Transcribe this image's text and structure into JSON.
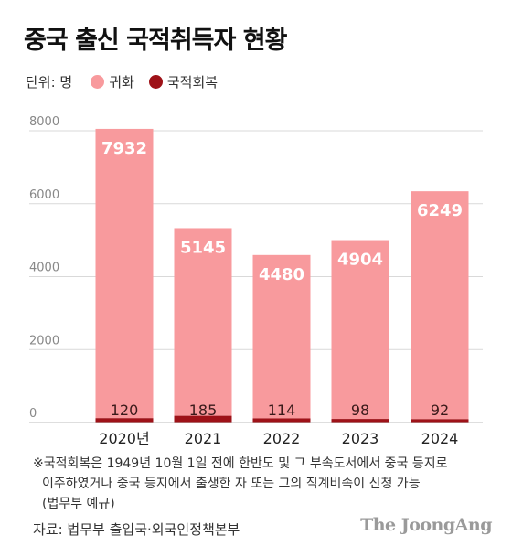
{
  "title": "중국 출신 국적취득자 현황",
  "unit_label": "단위: 명",
  "colors": {
    "naturalization": "#f89a9d",
    "restoration": "#9e1218",
    "grid": "#d9d9d9",
    "axis_text": "#888888",
    "label_text": "#ffffff"
  },
  "chart_data": {
    "type": "bar",
    "stacked": true,
    "categories": [
      "2020년",
      "2021",
      "2022",
      "2023",
      "2024"
    ],
    "series": [
      {
        "name": "국적회복",
        "values": [
          120,
          185,
          114,
          98,
          92
        ]
      },
      {
        "name": "귀화",
        "values": [
          7932,
          5145,
          4480,
          4904,
          6249
        ]
      }
    ],
    "ylim": [
      0,
      8000
    ],
    "yticks": [
      0,
      2000,
      4000,
      6000,
      8000
    ],
    "grid": true,
    "legend_position": "top-left"
  },
  "footnote": {
    "line1": "※국적회복은 1949년 10월 1일 전에 한반도 및 그 부속도서에서 중국 등지로",
    "line2": "이주하였거나 중국 등지에서 출생한 자 또는 그의 직계비속이 신청 가능",
    "line3": "(법무부 예규)"
  },
  "source": "자료: 법무부 출입국·외국인정책본부",
  "brand": "The JoongAng"
}
